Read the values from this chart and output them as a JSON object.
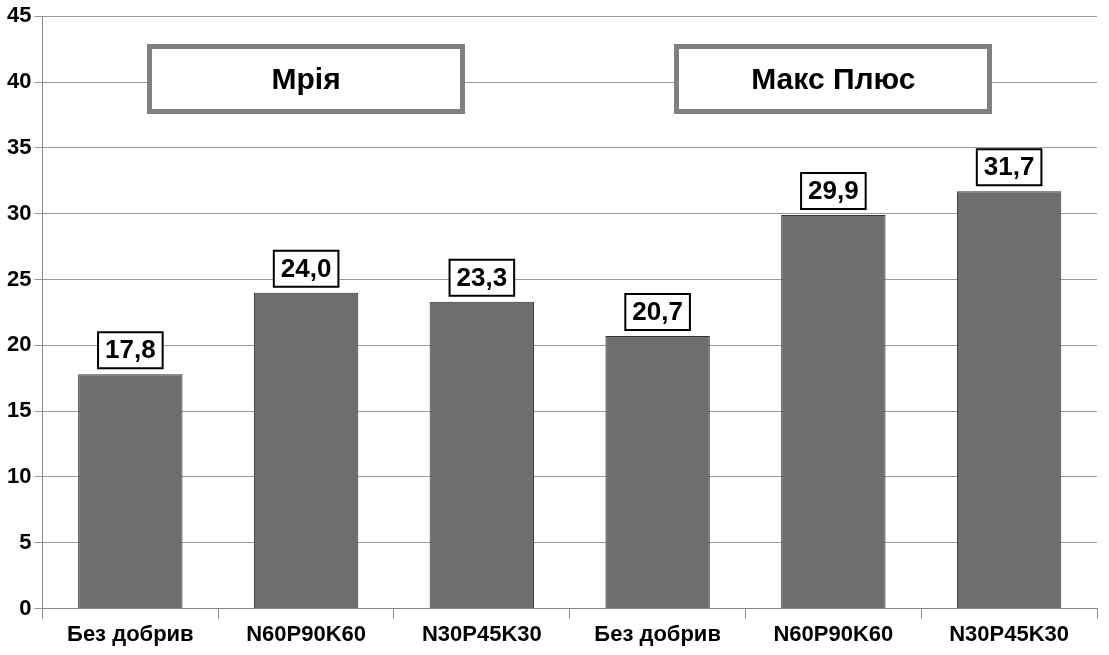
{
  "chart_data": {
    "type": "bar",
    "categories": [
      "Без добрив",
      "N60P90K60",
      "N30P45K30",
      "Без добрив",
      "N60P90K60",
      "N30P45K30"
    ],
    "values": [
      17.8,
      24.0,
      23.3,
      20.7,
      29.9,
      31.7
    ],
    "value_labels": [
      "17,8",
      "24,0",
      "23,3",
      "20,7",
      "29,9",
      "31,7"
    ],
    "color": "#6e6e6e",
    "ylim": [
      0,
      45
    ],
    "yticks": [
      0,
      5,
      10,
      15,
      20,
      25,
      30,
      35,
      40,
      45
    ],
    "grid": "y",
    "legend": false,
    "annotations": [
      "Мрія",
      "Макс Плюс"
    ]
  }
}
